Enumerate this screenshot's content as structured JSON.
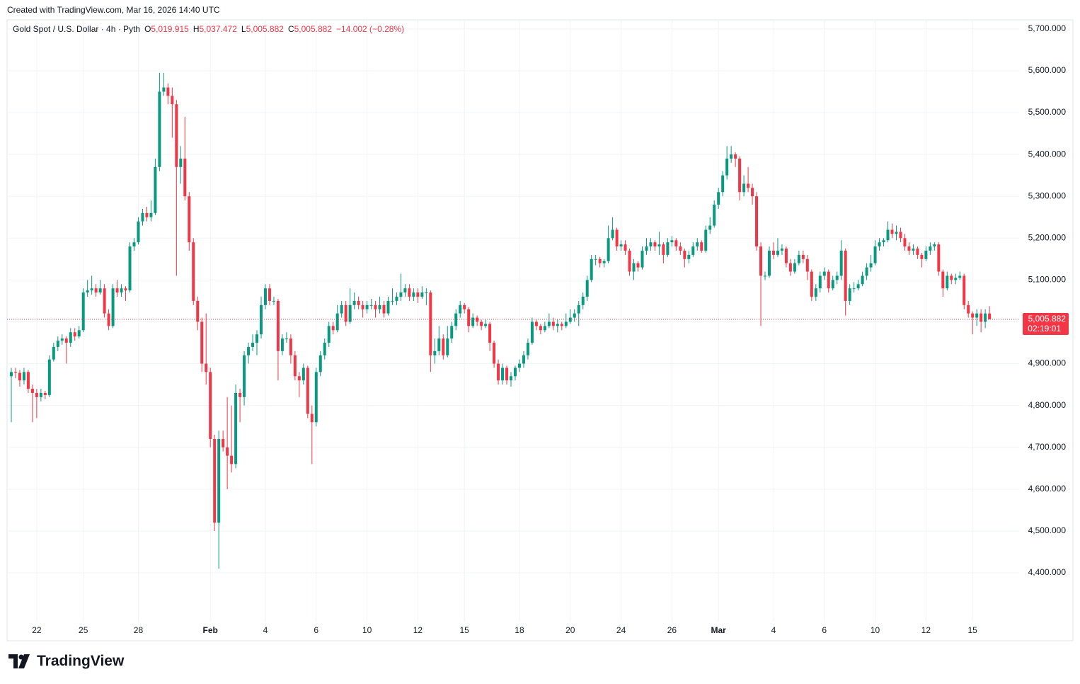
{
  "header": {
    "created": "Created with TradingView.com, Mar 16, 2026 14:40 UTC"
  },
  "footer": {
    "brand": "TradingView"
  },
  "chart_data": {
    "type": "candlestick",
    "symbol": "Gold Spot / U.S. Dollar · 4h · Pyth",
    "ohlc_legend": [
      {
        "key": "O",
        "value": "5,019.915"
      },
      {
        "key": "H",
        "value": "5,037.472"
      },
      {
        "key": "L",
        "value": "5,005.882"
      },
      {
        "key": "C",
        "value": "5,005.882"
      }
    ],
    "change": "−14.002 (−0.28%)",
    "up_color": "#089981",
    "down_color": "#f23645",
    "grid": true,
    "xlim": [
      -1,
      238
    ],
    "xticks": [
      {
        "value": 6,
        "label": "22"
      },
      {
        "value": 17,
        "label": "25"
      },
      {
        "value": 30,
        "label": "28"
      },
      {
        "value": 47,
        "label": "Feb"
      },
      {
        "value": 60,
        "label": "4"
      },
      {
        "value": 72,
        "label": "6"
      },
      {
        "value": 84,
        "label": "10"
      },
      {
        "value": 96,
        "label": "12"
      },
      {
        "value": 107,
        "label": "15"
      },
      {
        "value": 120,
        "label": "18"
      },
      {
        "value": 132,
        "label": "20"
      },
      {
        "value": 144,
        "label": "24"
      },
      {
        "value": 156,
        "label": "26"
      },
      {
        "value": 167,
        "label": "Mar"
      },
      {
        "value": 180,
        "label": "4"
      },
      {
        "value": 192,
        "label": "6"
      },
      {
        "value": 204,
        "label": "10"
      },
      {
        "value": 216,
        "label": "12"
      },
      {
        "value": 227,
        "label": "15"
      }
    ],
    "ylim": [
      4283.3,
      5721.7
    ],
    "yticks": [
      {
        "value": 4400,
        "label": "4,400.000"
      },
      {
        "value": 4500,
        "label": "4,500.000"
      },
      {
        "value": 4600,
        "label": "4,600.000"
      },
      {
        "value": 4700,
        "label": "4,700.000"
      },
      {
        "value": 4800,
        "label": "4,800.000"
      },
      {
        "value": 4900,
        "label": "4,900.000"
      },
      {
        "value": 5000,
        "label": "5,000.000"
      },
      {
        "value": 5100,
        "label": "5,100.000"
      },
      {
        "value": 5200,
        "label": "5,200.000"
      },
      {
        "value": 5300,
        "label": "5,300.000"
      },
      {
        "value": 5400,
        "label": "5,400.000"
      },
      {
        "value": 5500,
        "label": "5,500.000"
      },
      {
        "value": 5600,
        "label": "5,600.000"
      },
      {
        "value": 5700,
        "label": "5,700.000"
      }
    ],
    "last_price": {
      "value": 5005.882,
      "label": "5,005.882"
    },
    "countdown": "02:19:01",
    "candles": [
      [
        4870,
        4890,
        4760,
        4880
      ],
      [
        4880,
        4890,
        4865,
        4878
      ],
      [
        4878,
        4885,
        4845,
        4860
      ],
      [
        4860,
        4890,
        4850,
        4880
      ],
      [
        4880,
        4885,
        4830,
        4840
      ],
      [
        4840,
        4850,
        4760,
        4830
      ],
      [
        4830,
        4840,
        4770,
        4820
      ],
      [
        4820,
        4840,
        4810,
        4830
      ],
      [
        4830,
        4835,
        4815,
        4825
      ],
      [
        4825,
        4920,
        4820,
        4910
      ],
      [
        4910,
        4950,
        4905,
        4940
      ],
      [
        4940,
        4965,
        4930,
        4955
      ],
      [
        4955,
        4970,
        4945,
        4960
      ],
      [
        4960,
        4965,
        4900,
        4950
      ],
      [
        4950,
        4985,
        4940,
        4975
      ],
      [
        4975,
        4985,
        4955,
        4965
      ],
      [
        4965,
        4990,
        4960,
        4980
      ],
      [
        4980,
        5080,
        4975,
        5070
      ],
      [
        5070,
        5100,
        5060,
        5075
      ],
      [
        5075,
        5110,
        5065,
        5080
      ],
      [
        5080,
        5090,
        5060,
        5070
      ],
      [
        5070,
        5100,
        5065,
        5080
      ],
      [
        5080,
        5090,
        5010,
        5020
      ],
      [
        5020,
        5030,
        4980,
        4990
      ],
      [
        4990,
        5090,
        4985,
        5080
      ],
      [
        5080,
        5100,
        5060,
        5070
      ],
      [
        5070,
        5090,
        5060,
        5080
      ],
      [
        5080,
        5085,
        5050,
        5075
      ],
      [
        5075,
        5190,
        5070,
        5180
      ],
      [
        5180,
        5200,
        5170,
        5190
      ],
      [
        5190,
        5250,
        5185,
        5240
      ],
      [
        5240,
        5270,
        5230,
        5260
      ],
      [
        5260,
        5275,
        5240,
        5250
      ],
      [
        5250,
        5290,
        5240,
        5260
      ],
      [
        5260,
        5390,
        5255,
        5370
      ],
      [
        5370,
        5595,
        5360,
        5550
      ],
      [
        5550,
        5595,
        5540,
        5560
      ],
      [
        5560,
        5570,
        5520,
        5540
      ],
      [
        5540,
        5560,
        5440,
        5520
      ],
      [
        5520,
        5530,
        5110,
        5370
      ],
      [
        5370,
        5420,
        5330,
        5390
      ],
      [
        5390,
        5490,
        5290,
        5300
      ],
      [
        5300,
        5310,
        5170,
        5190
      ],
      [
        5190,
        5200,
        5040,
        5050
      ],
      [
        5050,
        5060,
        4980,
        5000
      ],
      [
        5000,
        5010,
        4880,
        4900
      ],
      [
        4900,
        5020,
        4850,
        4880
      ],
      [
        4880,
        4890,
        4700,
        4720
      ],
      [
        4720,
        4730,
        4500,
        4520
      ],
      [
        4520,
        4740,
        4410,
        4720
      ],
      [
        4720,
        4740,
        4690,
        4700
      ],
      [
        4700,
        4820,
        4600,
        4680
      ],
      [
        4680,
        4800,
        4640,
        4660
      ],
      [
        4660,
        4850,
        4650,
        4830
      ],
      [
        4830,
        4840,
        4760,
        4820
      ],
      [
        4820,
        4930,
        4800,
        4920
      ],
      [
        4920,
        4950,
        4900,
        4940
      ],
      [
        4940,
        4970,
        4930,
        4950
      ],
      [
        4950,
        4980,
        4920,
        4970
      ],
      [
        4970,
        5060,
        4960,
        5040
      ],
      [
        5040,
        5090,
        5030,
        5080
      ],
      [
        5080,
        5090,
        5040,
        5050
      ],
      [
        5050,
        5060,
        5040,
        5050
      ],
      [
        5050,
        5055,
        4860,
        4930
      ],
      [
        4930,
        4970,
        4920,
        4960
      ],
      [
        4960,
        4975,
        4950,
        4960
      ],
      [
        4960,
        4970,
        4900,
        4920
      ],
      [
        4920,
        4930,
        4860,
        4870
      ],
      [
        4870,
        4880,
        4820,
        4860
      ],
      [
        4860,
        4900,
        4850,
        4890
      ],
      [
        4890,
        4895,
        4770,
        4780
      ],
      [
        4780,
        4800,
        4660,
        4760
      ],
      [
        4760,
        4890,
        4750,
        4880
      ],
      [
        4880,
        4930,
        4870,
        4920
      ],
      [
        4920,
        4960,
        4910,
        4950
      ],
      [
        4950,
        5000,
        4940,
        4990
      ],
      [
        4990,
        5000,
        4970,
        4980
      ],
      [
        4980,
        5040,
        4975,
        5020
      ],
      [
        5020,
        5050,
        5010,
        5040
      ],
      [
        5040,
        5050,
        4990,
        5000
      ],
      [
        5000,
        5080,
        4995,
        5040
      ],
      [
        5040,
        5070,
        5030,
        5050
      ],
      [
        5050,
        5060,
        5030,
        5040
      ],
      [
        5040,
        5050,
        5010,
        5030
      ],
      [
        5030,
        5050,
        5020,
        5040
      ],
      [
        5040,
        5055,
        5030,
        5040
      ],
      [
        5040,
        5050,
        5010,
        5030
      ],
      [
        5030,
        5060,
        5020,
        5040
      ],
      [
        5040,
        5050,
        5010,
        5020
      ],
      [
        5020,
        5060,
        5015,
        5050
      ],
      [
        5050,
        5080,
        5040,
        5050
      ],
      [
        5050,
        5070,
        5040,
        5060
      ],
      [
        5060,
        5115,
        5050,
        5070
      ],
      [
        5070,
        5090,
        5060,
        5080
      ],
      [
        5080,
        5090,
        5050,
        5060
      ],
      [
        5060,
        5080,
        5050,
        5070
      ],
      [
        5070,
        5080,
        5045,
        5060
      ],
      [
        5060,
        5085,
        5055,
        5070
      ],
      [
        5070,
        5080,
        5040,
        5070
      ],
      [
        5070,
        5075,
        4880,
        4920
      ],
      [
        4920,
        4960,
        4900,
        4930
      ],
      [
        4930,
        4990,
        4920,
        4960
      ],
      [
        4960,
        4970,
        4910,
        4920
      ],
      [
        4920,
        4990,
        4915,
        4960
      ],
      [
        4960,
        5000,
        4950,
        4990
      ],
      [
        4990,
        5030,
        4980,
        5020
      ],
      [
        5020,
        5050,
        5010,
        5040
      ],
      [
        5040,
        5045,
        5020,
        5030
      ],
      [
        5030,
        5035,
        4975,
        4990
      ],
      [
        4990,
        5020,
        4985,
        5010
      ],
      [
        5010,
        5015,
        4990,
        5000
      ],
      [
        5000,
        5005,
        4980,
        4990
      ],
      [
        4990,
        5005,
        4985,
        4995
      ],
      [
        4995,
        5000,
        4930,
        4950
      ],
      [
        4950,
        4955,
        4890,
        4900
      ],
      [
        4900,
        4910,
        4850,
        4860
      ],
      [
        4860,
        4900,
        4850,
        4890
      ],
      [
        4890,
        4895,
        4850,
        4860
      ],
      [
        4860,
        4880,
        4845,
        4870
      ],
      [
        4870,
        4895,
        4860,
        4890
      ],
      [
        4890,
        4910,
        4880,
        4900
      ],
      [
        4900,
        4930,
        4890,
        4920
      ],
      [
        4920,
        4960,
        4910,
        4950
      ],
      [
        4950,
        5010,
        4945,
        5000
      ],
      [
        5000,
        5005,
        4980,
        4990
      ],
      [
        4990,
        4995,
        4970,
        4980
      ],
      [
        4980,
        5000,
        4975,
        4990
      ],
      [
        4990,
        5020,
        4985,
        5000
      ],
      [
        5000,
        5010,
        4980,
        4990
      ],
      [
        4990,
        5005,
        4975,
        4995
      ],
      [
        4995,
        5000,
        4980,
        4990
      ],
      [
        4990,
        5020,
        4985,
        5000
      ],
      [
        5000,
        5030,
        4995,
        5010
      ],
      [
        5010,
        5030,
        5000,
        5020
      ],
      [
        5020,
        5050,
        4990,
        5040
      ],
      [
        5040,
        5070,
        5030,
        5060
      ],
      [
        5060,
        5110,
        5050,
        5100
      ],
      [
        5100,
        5160,
        5095,
        5150
      ],
      [
        5150,
        5160,
        5135,
        5150
      ],
      [
        5150,
        5155,
        5130,
        5140
      ],
      [
        5140,
        5150,
        5130,
        5145
      ],
      [
        5145,
        5230,
        5140,
        5200
      ],
      [
        5200,
        5250,
        5195,
        5220
      ],
      [
        5220,
        5225,
        5170,
        5180
      ],
      [
        5180,
        5195,
        5170,
        5185
      ],
      [
        5185,
        5195,
        5160,
        5170
      ],
      [
        5170,
        5175,
        5110,
        5120
      ],
      [
        5120,
        5150,
        5100,
        5140
      ],
      [
        5140,
        5145,
        5120,
        5130
      ],
      [
        5130,
        5180,
        5125,
        5170
      ],
      [
        5170,
        5200,
        5160,
        5180
      ],
      [
        5180,
        5200,
        5170,
        5190
      ],
      [
        5190,
        5195,
        5170,
        5180
      ],
      [
        5180,
        5215,
        5160,
        5185
      ],
      [
        5185,
        5190,
        5140,
        5160
      ],
      [
        5160,
        5200,
        5155,
        5190
      ],
      [
        5190,
        5205,
        5180,
        5195
      ],
      [
        5195,
        5200,
        5170,
        5180
      ],
      [
        5180,
        5190,
        5160,
        5170
      ],
      [
        5170,
        5175,
        5130,
        5150
      ],
      [
        5150,
        5170,
        5140,
        5160
      ],
      [
        5160,
        5190,
        5155,
        5180
      ],
      [
        5180,
        5200,
        5170,
        5190
      ],
      [
        5190,
        5195,
        5165,
        5170
      ],
      [
        5170,
        5230,
        5165,
        5220
      ],
      [
        5220,
        5250,
        5210,
        5230
      ],
      [
        5230,
        5290,
        5225,
        5280
      ],
      [
        5280,
        5320,
        5270,
        5310
      ],
      [
        5310,
        5360,
        5300,
        5350
      ],
      [
        5350,
        5420,
        5340,
        5390
      ],
      [
        5390,
        5420,
        5380,
        5400
      ],
      [
        5400,
        5405,
        5370,
        5390
      ],
      [
        5390,
        5395,
        5290,
        5310
      ],
      [
        5310,
        5350,
        5300,
        5330
      ],
      [
        5330,
        5370,
        5310,
        5320
      ],
      [
        5320,
        5330,
        5280,
        5300
      ],
      [
        5300,
        5310,
        5170,
        5180
      ],
      [
        5180,
        5190,
        4990,
        5110
      ],
      [
        5110,
        5120,
        5100,
        5110
      ],
      [
        5110,
        5180,
        5105,
        5170
      ],
      [
        5170,
        5190,
        5150,
        5160
      ],
      [
        5160,
        5200,
        5155,
        5170
      ],
      [
        5170,
        5185,
        5160,
        5175
      ],
      [
        5175,
        5180,
        5130,
        5140
      ],
      [
        5140,
        5150,
        5110,
        5120
      ],
      [
        5120,
        5150,
        5115,
        5140
      ],
      [
        5140,
        5170,
        5135,
        5160
      ],
      [
        5160,
        5170,
        5140,
        5150
      ],
      [
        5150,
        5160,
        5100,
        5120
      ],
      [
        5120,
        5125,
        5050,
        5060
      ],
      [
        5060,
        5090,
        5050,
        5080
      ],
      [
        5080,
        5120,
        5070,
        5110
      ],
      [
        5110,
        5130,
        5100,
        5120
      ],
      [
        5120,
        5125,
        5070,
        5080
      ],
      [
        5080,
        5110,
        5075,
        5100
      ],
      [
        5100,
        5120,
        5090,
        5110
      ],
      [
        5110,
        5195,
        5100,
        5170
      ],
      [
        5170,
        5175,
        5015,
        5050
      ],
      [
        5050,
        5090,
        5040,
        5080
      ],
      [
        5080,
        5095,
        5070,
        5080
      ],
      [
        5080,
        5100,
        5075,
        5090
      ],
      [
        5090,
        5120,
        5085,
        5110
      ],
      [
        5110,
        5140,
        5100,
        5130
      ],
      [
        5130,
        5160,
        5120,
        5140
      ],
      [
        5140,
        5195,
        5135,
        5180
      ],
      [
        5180,
        5200,
        5170,
        5190
      ],
      [
        5190,
        5200,
        5180,
        5195
      ],
      [
        5195,
        5240,
        5190,
        5220
      ],
      [
        5220,
        5235,
        5200,
        5210
      ],
      [
        5210,
        5230,
        5195,
        5215
      ],
      [
        5215,
        5225,
        5190,
        5200
      ],
      [
        5200,
        5210,
        5170,
        5180
      ],
      [
        5180,
        5190,
        5160,
        5170
      ],
      [
        5170,
        5185,
        5160,
        5175
      ],
      [
        5175,
        5180,
        5150,
        5160
      ],
      [
        5160,
        5165,
        5130,
        5150
      ],
      [
        5150,
        5180,
        5145,
        5170
      ],
      [
        5170,
        5190,
        5160,
        5180
      ],
      [
        5180,
        5190,
        5170,
        5185
      ],
      [
        5185,
        5190,
        5110,
        5120
      ],
      [
        5120,
        5125,
        5060,
        5080
      ],
      [
        5080,
        5120,
        5075,
        5110
      ],
      [
        5110,
        5115,
        5090,
        5100
      ],
      [
        5100,
        5115,
        5090,
        5105
      ],
      [
        5105,
        5120,
        5100,
        5110
      ],
      [
        5110,
        5115,
        5030,
        5040
      ],
      [
        5040,
        5050,
        5010,
        5020
      ],
      [
        5020,
        5025,
        4970,
        5010
      ],
      [
        5010,
        5030,
        4990,
        5020
      ],
      [
        5020,
        5030,
        4975,
        5000
      ],
      [
        5000,
        5030,
        4985,
        5019.915
      ],
      [
        5019.915,
        5037.472,
        5005.882,
        5005.882
      ]
    ]
  }
}
